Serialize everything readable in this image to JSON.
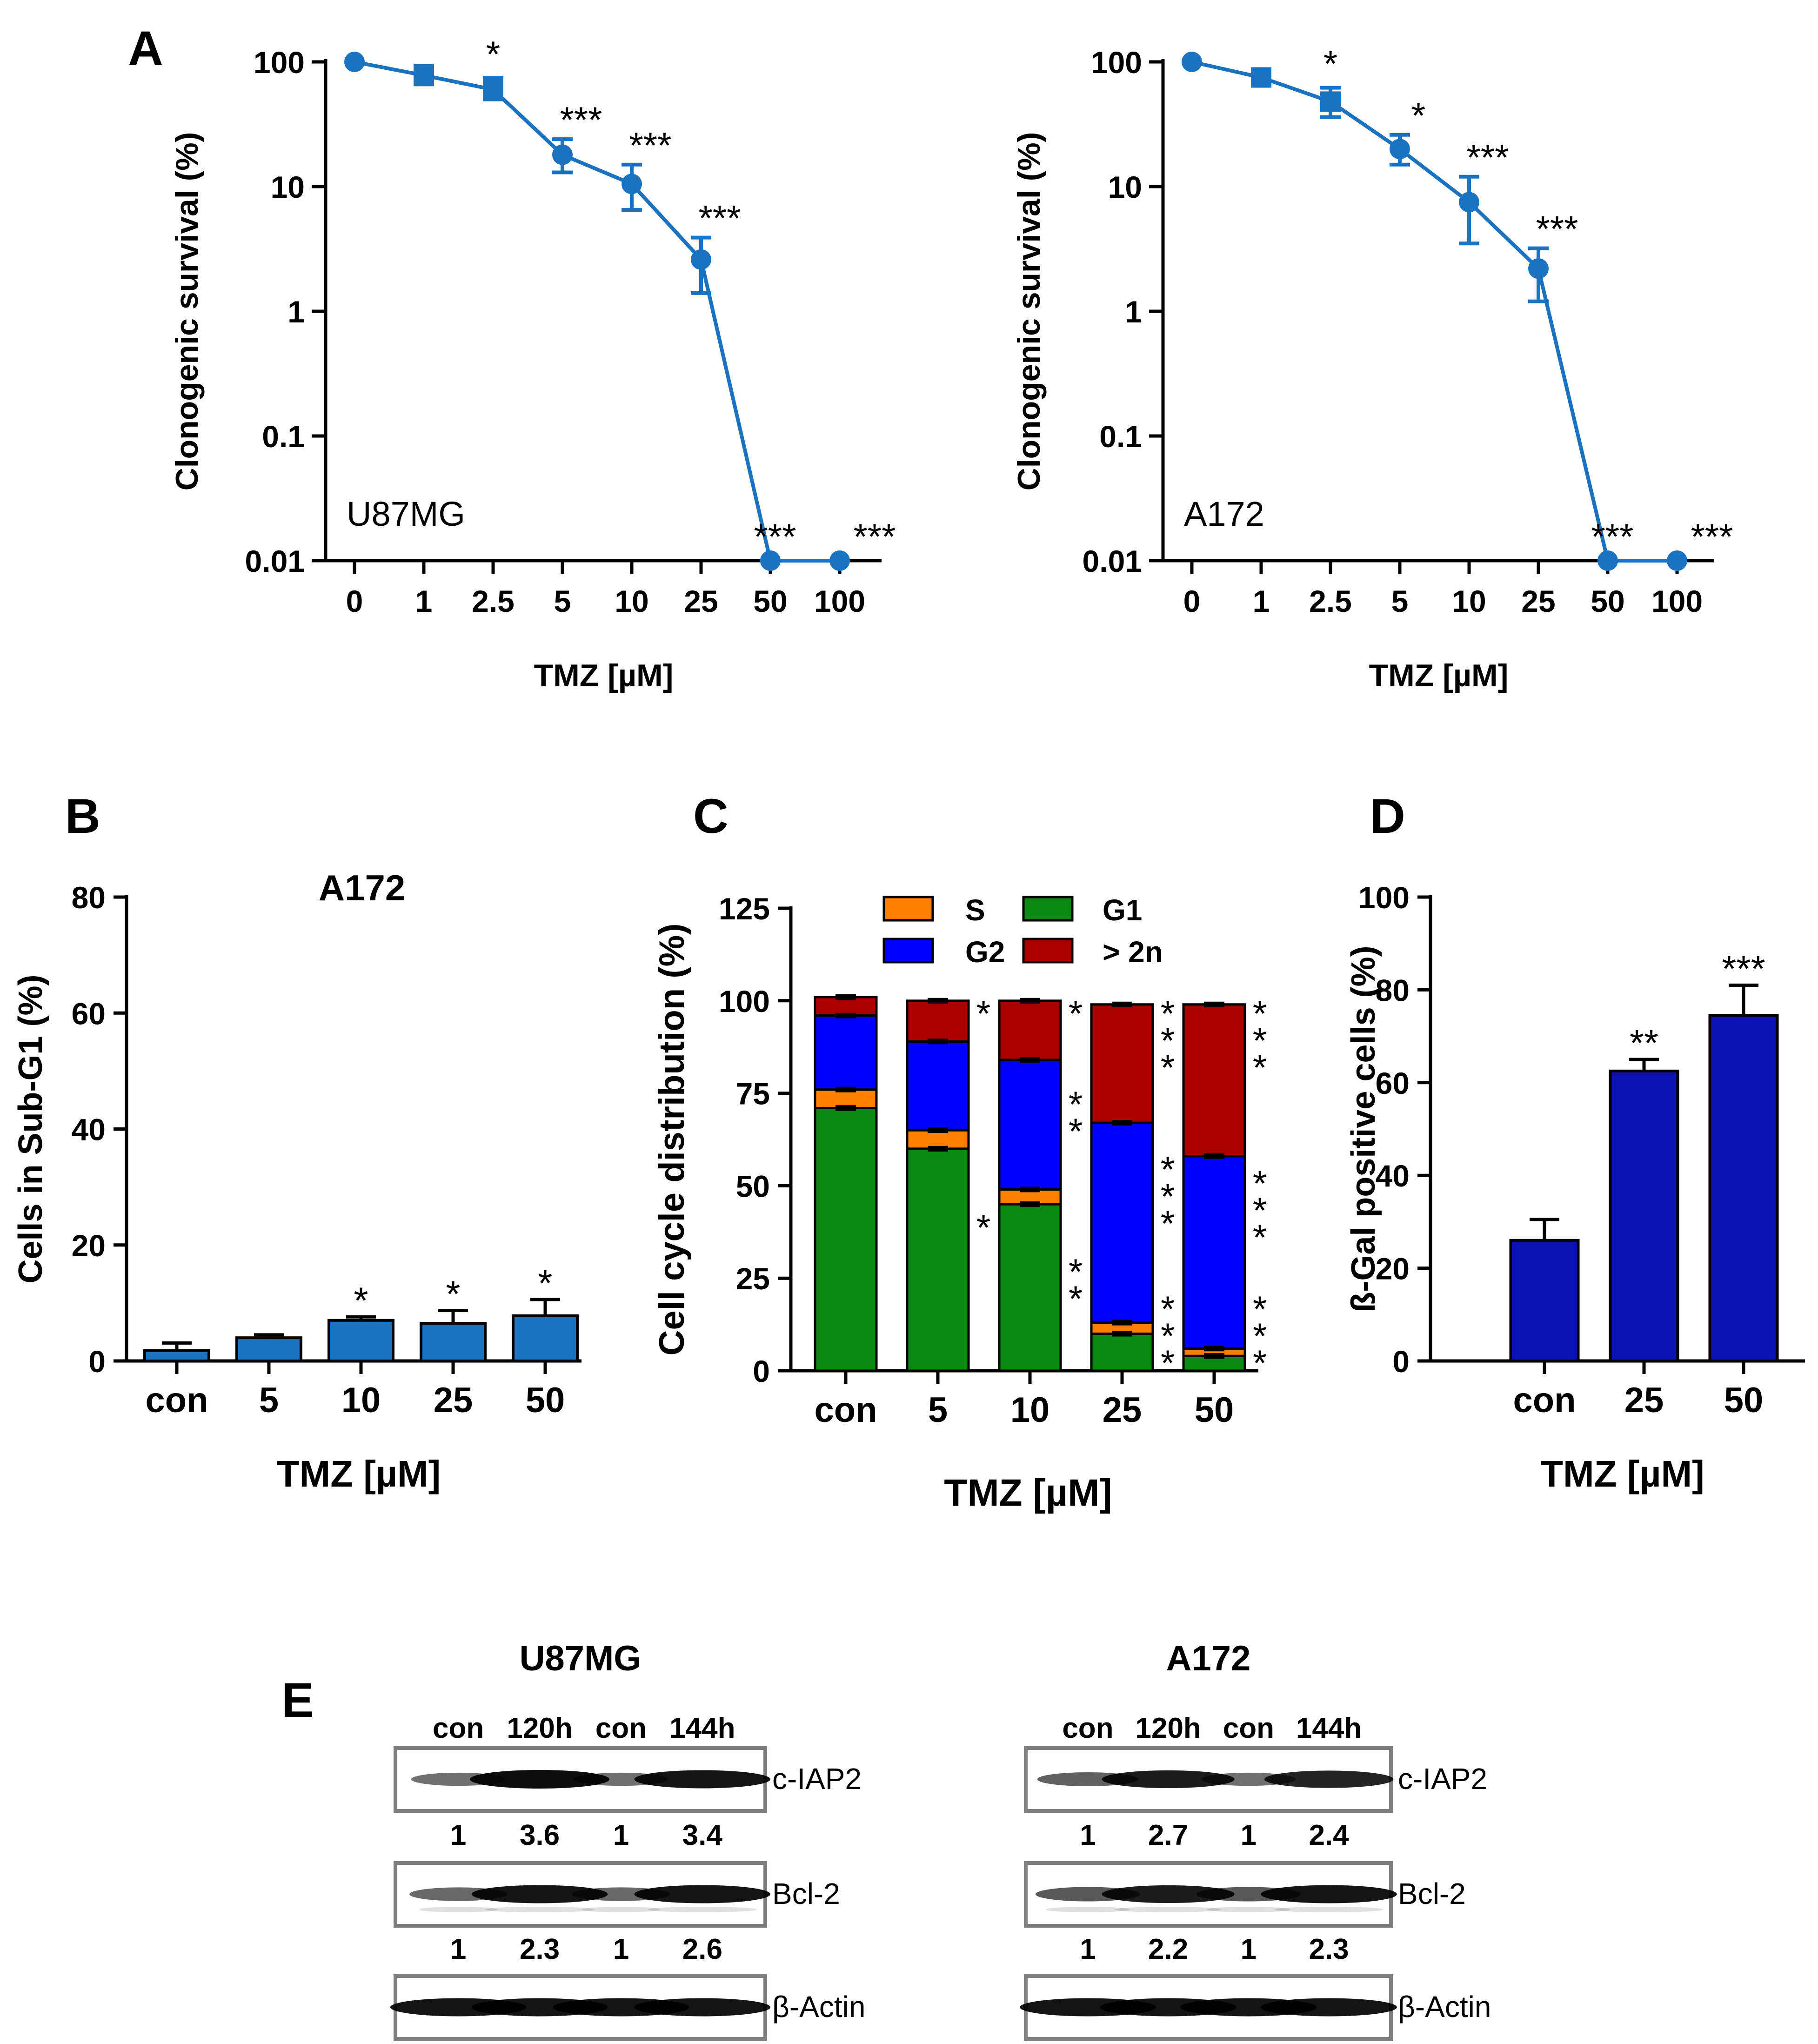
{
  "panels": {
    "A": {
      "letter": "A"
    },
    "B": {
      "letter": "B"
    },
    "C": {
      "letter": "C"
    },
    "D": {
      "letter": "D"
    },
    "E": {
      "letter": "E"
    }
  },
  "chart_data": [
    {
      "id": "A_U87MG",
      "type": "line",
      "y_scale": "log",
      "ylim": [
        0.01,
        100
      ],
      "ylabel": "Clonogenic survival (%)",
      "xlabel": "TMZ [µM]",
      "yticks": [
        "100",
        "10",
        "1",
        "0.1",
        "0.01"
      ],
      "categories": [
        "0",
        "1",
        "2.5",
        "5",
        "10",
        "25",
        "50",
        "100"
      ],
      "values": [
        100,
        78,
        60,
        18,
        10.5,
        2.6,
        0.01,
        0.01
      ],
      "err_low": [
        0,
        12,
        10,
        5,
        4,
        1.2,
        0,
        0
      ],
      "err_high": [
        0,
        15,
        14,
        6,
        4.5,
        1.3,
        0,
        0
      ],
      "significance": [
        "",
        "",
        "*",
        "***",
        "***",
        "***",
        "***",
        "***"
      ],
      "annotation": "U87MG",
      "color": "#1a72c0"
    },
    {
      "id": "A_A172",
      "type": "line",
      "y_scale": "log",
      "ylim": [
        0.01,
        100
      ],
      "ylabel": "Clonogenic survival (%)",
      "xlabel": "TMZ [µM]",
      "yticks": [
        "100",
        "10",
        "1",
        "0.1",
        "0.01"
      ],
      "categories": [
        "0",
        "1",
        "2.5",
        "5",
        "10",
        "25",
        "50",
        "100"
      ],
      "values": [
        100,
        75,
        48,
        20,
        7.5,
        2.2,
        0.01,
        0.01
      ],
      "err_low": [
        0,
        10,
        12,
        5,
        4,
        1,
        0,
        0
      ],
      "err_high": [
        0,
        12,
        14,
        6,
        4.5,
        1,
        0,
        0
      ],
      "significance": [
        "",
        "",
        "*",
        "*",
        "***",
        "***",
        "***",
        "***"
      ],
      "annotation": "A172",
      "color": "#1a72c0"
    },
    {
      "id": "B",
      "type": "bar",
      "title": "A172",
      "ylabel": "Cells in Sub-G1 (%)",
      "xlabel": "TMZ [µM]",
      "ylim": [
        0,
        80
      ],
      "yticks": [
        "0",
        "20",
        "40",
        "60",
        "80"
      ],
      "categories": [
        "con",
        "5",
        "10",
        "25",
        "50"
      ],
      "values": [
        1.8,
        4.0,
        7.0,
        6.5,
        7.8
      ],
      "errors": [
        1.3,
        0.5,
        0.6,
        2.2,
        2.8
      ],
      "significance": [
        "",
        "",
        "*",
        "*",
        "*"
      ],
      "color": "#1a72c0"
    },
    {
      "id": "C",
      "type": "bar",
      "stacked": true,
      "ylabel": "Cell cycle distribution (%)",
      "xlabel": "TMZ [µM]",
      "ylim": [
        0,
        125
      ],
      "yticks": [
        "0",
        "25",
        "50",
        "75",
        "100",
        "125"
      ],
      "categories": [
        "con",
        "5",
        "10",
        "25",
        "50"
      ],
      "series": [
        {
          "name": "G1",
          "color": "#0b8a12",
          "values": [
            71,
            60,
            45,
            10,
            4
          ]
        },
        {
          "name": "S",
          "color": "#ff7f00",
          "values": [
            5,
            5,
            4,
            3,
            2
          ]
        },
        {
          "name": "G2",
          "color": "#0000ff",
          "values": [
            20,
            24,
            35,
            54,
            52
          ]
        },
        {
          "name": "> 2n",
          "color": "#aa0000",
          "values": [
            5,
            11,
            16,
            32,
            41
          ]
        }
      ],
      "legend_order": [
        "S",
        "G1",
        "G2",
        "> 2n"
      ],
      "significance": {
        "> 2n": [
          "",
          "*",
          "*",
          "***",
          "***"
        ],
        "G2": [
          "",
          "",
          "**",
          "***",
          "***"
        ],
        "G1": [
          "",
          "*",
          "**",
          "***",
          "***"
        ]
      }
    },
    {
      "id": "D",
      "type": "bar",
      "ylabel": "ß-Gal positive cells (%)",
      "xlabel": "TMZ [µM]",
      "ylim": [
        0,
        100
      ],
      "yticks": [
        "0",
        "20",
        "40",
        "60",
        "80",
        "100"
      ],
      "categories": [
        "con",
        "25",
        "50"
      ],
      "values": [
        26,
        62.5,
        74.5
      ],
      "errors": [
        4.5,
        2.5,
        6.5
      ],
      "significance": [
        "",
        "**",
        "***"
      ],
      "color": "#0a14b4"
    }
  ],
  "blots": {
    "left": {
      "title": "U87MG",
      "lanes": [
        "con",
        "120h",
        "con",
        "144h"
      ],
      "rows": [
        {
          "label": "c-IAP2",
          "intensities": [
            0.35,
            1.0,
            0.35,
            0.95
          ]
        },
        {
          "label": "Bcl-2",
          "intensities": [
            0.4,
            0.95,
            0.4,
            0.95
          ]
        },
        {
          "label": "β-Actin",
          "intensities": [
            0.95,
            0.95,
            0.95,
            0.95
          ]
        }
      ],
      "quant": [
        [
          "1",
          "3.6",
          "1",
          "3.4"
        ],
        [
          "1",
          "2.3",
          "1",
          "2.6"
        ]
      ]
    },
    "right": {
      "title": "A172",
      "lanes": [
        "con",
        "120h",
        "con",
        "144h"
      ],
      "rows": [
        {
          "label": "c-IAP2",
          "intensities": [
            0.45,
            0.9,
            0.35,
            0.85
          ]
        },
        {
          "label": "Bcl-2",
          "intensities": [
            0.5,
            0.9,
            0.5,
            0.95
          ]
        },
        {
          "label": "β-Actin",
          "intensities": [
            0.95,
            0.95,
            0.95,
            0.95
          ]
        }
      ],
      "quant": [
        [
          "1",
          "2.7",
          "1",
          "2.4"
        ],
        [
          "1",
          "2.2",
          "1",
          "2.3"
        ]
      ]
    }
  }
}
